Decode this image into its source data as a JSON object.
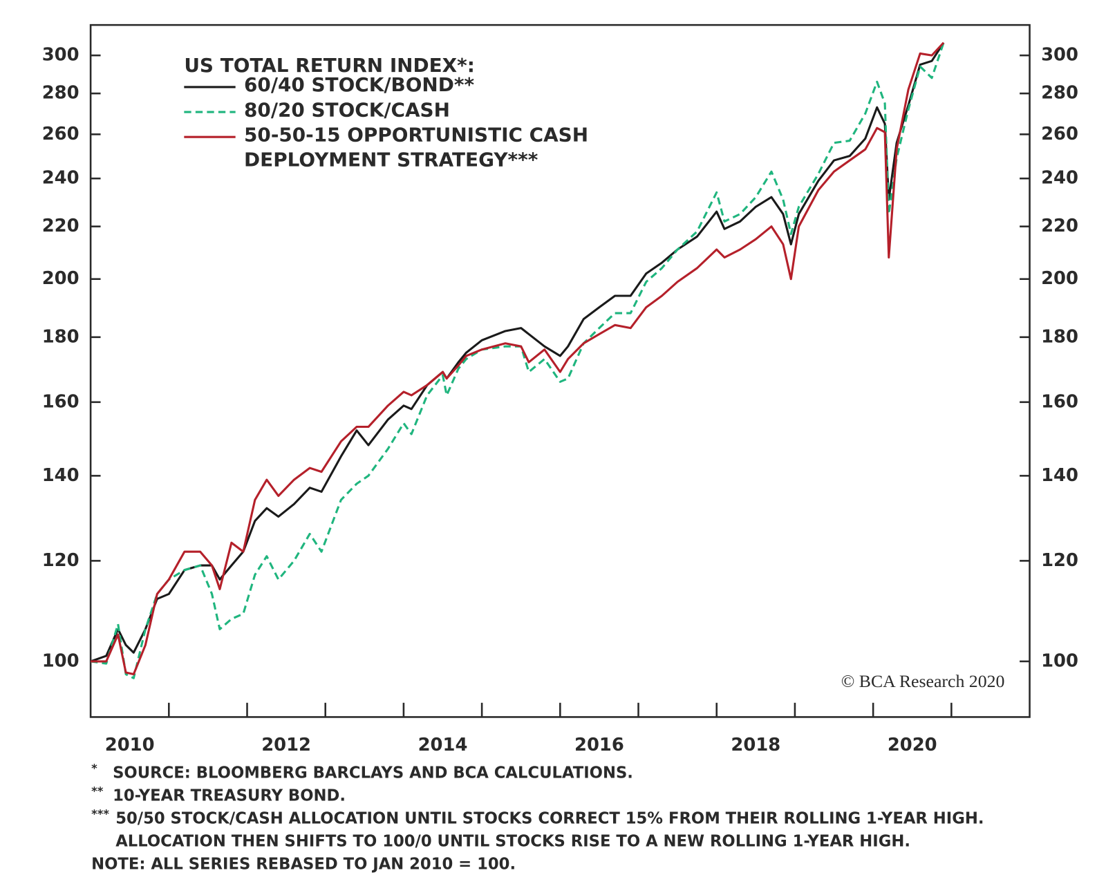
{
  "chart_data": {
    "type": "line",
    "title": "US TOTAL RETURN INDEX*:",
    "log_y": true,
    "xlim": [
      2010,
      2022
    ],
    "ylim": [
      90.4,
      317
    ],
    "yticks": [
      100,
      120,
      140,
      160,
      180,
      200,
      220,
      240,
      260,
      280,
      300
    ],
    "xticks": [
      {
        "value": 2010.5,
        "label": "2010"
      },
      {
        "value": 2012.5,
        "label": "2012"
      },
      {
        "value": 2014.5,
        "label": "2014"
      },
      {
        "value": 2016.5,
        "label": "2016"
      },
      {
        "value": 2018.5,
        "label": "2018"
      },
      {
        "value": 2020.5,
        "label": "2020"
      }
    ],
    "xminorticks": [
      2011,
      2012,
      2013,
      2014,
      2015,
      2016,
      2017,
      2018,
      2019,
      2020,
      2021
    ],
    "x": [
      2010.0,
      2010.2,
      2010.35,
      2010.45,
      2010.55,
      2010.7,
      2010.85,
      2011.0,
      2011.2,
      2011.4,
      2011.55,
      2011.65,
      2011.8,
      2011.95,
      2012.1,
      2012.25,
      2012.4,
      2012.6,
      2012.8,
      2012.95,
      2013.2,
      2013.4,
      2013.55,
      2013.8,
      2014.0,
      2014.1,
      2014.3,
      2014.5,
      2014.55,
      2014.7,
      2014.8,
      2015.0,
      2015.3,
      2015.5,
      2015.6,
      2015.8,
      2016.0,
      2016.1,
      2016.3,
      2016.5,
      2016.7,
      2016.9,
      2017.1,
      2017.3,
      2017.5,
      2017.75,
      2018.0,
      2018.1,
      2018.3,
      2018.5,
      2018.7,
      2018.85,
      2018.95,
      2019.05,
      2019.3,
      2019.5,
      2019.7,
      2019.9,
      2020.05,
      2020.15,
      2020.2,
      2020.3,
      2020.45,
      2020.6,
      2020.75,
      2020.9
    ],
    "series": [
      {
        "name": "60/40 STOCK/BOND**",
        "color": "#1a1a1a",
        "dash": false,
        "values": [
          100,
          101,
          106,
          103,
          101.6,
          106,
          112,
          113,
          118,
          119,
          119,
          116,
          119,
          122,
          129,
          132,
          130,
          133,
          137,
          136,
          145,
          152,
          148,
          155,
          159,
          158,
          165,
          169,
          167,
          172,
          175,
          179,
          182,
          183,
          181,
          177,
          174,
          177,
          186,
          190,
          194,
          194,
          202,
          206,
          211,
          216,
          226,
          219,
          222,
          228,
          232,
          225,
          213,
          225,
          239,
          248,
          250,
          258,
          273,
          265,
          231,
          256,
          274,
          295,
          297,
          307
        ]
      },
      {
        "name": "80/20 STOCK/CASH",
        "color": "#1fb57e",
        "dash": true,
        "values": [
          100,
          99.6,
          107,
          97.7,
          97,
          106,
          113,
          116,
          118,
          119,
          113,
          106,
          108,
          109,
          117,
          121,
          116,
          120,
          126,
          122,
          134,
          138,
          140,
          147,
          154,
          151,
          162,
          168,
          162,
          170,
          173,
          176,
          177,
          177,
          169,
          173,
          166,
          167,
          178,
          183,
          188,
          188,
          199,
          204,
          211,
          218,
          234,
          222,
          225,
          232,
          243,
          231,
          217,
          228,
          242,
          256,
          257,
          270,
          286,
          275,
          225,
          249,
          272,
          294,
          288,
          307
        ]
      },
      {
        "name": "50-50-15 OPPORTUNISTIC CASH DEPLOYMENT STRATEGY***",
        "color": "#b5202a",
        "dash": false,
        "values": [
          100,
          100,
          105,
          98,
          97.7,
          103,
          113,
          116,
          122,
          122,
          119,
          114,
          124,
          122,
          134,
          139,
          135,
          139,
          142,
          141,
          149,
          153,
          153,
          159,
          163,
          162,
          165,
          169,
          167,
          171,
          174,
          176,
          178,
          177,
          172,
          176,
          169,
          173,
          178,
          181,
          184,
          183,
          190,
          194,
          199,
          204,
          211,
          208,
          211,
          215,
          220,
          213,
          200,
          220,
          235,
          243,
          248,
          253,
          263,
          261,
          208,
          253,
          282,
          301,
          300,
          307
        ]
      }
    ],
    "watermark": "© BCA Research 2020",
    "notes": [
      "*",
      "SOURCE: BLOOMBERG BARCLAYS AND BCA CALCULATIONS.",
      "**",
      "10-YEAR TREASURY BOND.",
      "***",
      "50/50 STOCK/CASH ALLOCATION UNTIL STOCKS CORRECT 15% FROM THEIR ROLLING 1-YEAR HIGH.",
      "ALLOCATION THEN SHIFTS TO 100/0 UNTIL STOCKS RISE TO A NEW ROLLING 1-YEAR HIGH.",
      "NOTE: ALL SERIES REBASED TO JAN 2010 = 100."
    ]
  }
}
